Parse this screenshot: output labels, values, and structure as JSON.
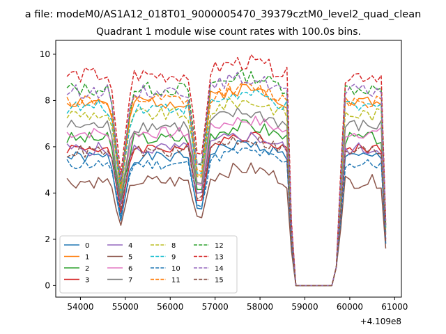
{
  "figure": {
    "suptitle": "a file: modeM0/AS1A12_018T01_9000005470_39379cztM0_level2_quad_clean",
    "title": "Quadrant 1 module wise count rates with 100.0s bins.",
    "offset_label": "+4.109e8"
  },
  "chart_data": {
    "type": "line",
    "title": "Quadrant 1 module wise count rates with 100.0s bins.",
    "xlabel": "",
    "ylabel": "",
    "x_offset": 410900000,
    "xlim": [
      53450,
      61150
    ],
    "ylim": [
      -0.5,
      10.6
    ],
    "xticks": [
      54000,
      55000,
      56000,
      57000,
      58000,
      59000,
      60000,
      61000
    ],
    "xtick_labels": [
      "54000",
      "55000",
      "56000",
      "57000",
      "58000",
      "59000",
      "60000",
      "61000"
    ],
    "yticks": [
      0,
      2,
      4,
      6,
      8,
      10
    ],
    "ytick_labels": [
      "0",
      "2",
      "4",
      "6",
      "8",
      "10"
    ],
    "grid": false,
    "legend_position": "lower-left",
    "bin_seconds": 100,
    "segments": [
      [
        53700,
        54800
      ],
      [
        54900,
        56600
      ],
      [
        56700,
        58600
      ],
      [
        59800,
        60800
      ]
    ],
    "series": [
      {
        "name": "0",
        "color": "#1f77b4",
        "dash": "solid",
        "base": 5.55,
        "amp": 0.25,
        "seed": 1,
        "dip": 2.8,
        "gap_start": 1.9,
        "gap_end": 1.8
      },
      {
        "name": "1",
        "color": "#ff7f0e",
        "dash": "solid",
        "base": 7.95,
        "amp": 0.3,
        "seed": 2,
        "dip": 4.0,
        "gap_start": 2.2,
        "gap_end": 2.5
      },
      {
        "name": "2",
        "color": "#2ca02c",
        "dash": "solid",
        "base": 6.35,
        "amp": 0.3,
        "seed": 3,
        "dip": 3.6,
        "gap_start": 2.2,
        "gap_end": 2.2
      },
      {
        "name": "3",
        "color": "#d62728",
        "dash": "solid",
        "base": 5.95,
        "amp": 0.25,
        "seed": 4,
        "dip": 3.1,
        "gap_start": 2.0,
        "gap_end": 2.0
      },
      {
        "name": "4",
        "color": "#9467bd",
        "dash": "solid",
        "base": 5.9,
        "amp": 0.3,
        "seed": 5,
        "dip": 3.5,
        "gap_start": 2.1,
        "gap_end": 2.0
      },
      {
        "name": "5",
        "color": "#8c564b",
        "dash": "solid",
        "base": 4.5,
        "amp": 0.3,
        "seed": 6,
        "dip": 2.6,
        "gap_start": 1.5,
        "gap_end": 1.6
      },
      {
        "name": "6",
        "color": "#e377c2",
        "dash": "solid",
        "base": 6.6,
        "amp": 0.25,
        "seed": 7,
        "dip": 3.8,
        "gap_start": 2.2,
        "gap_end": 2.2
      },
      {
        "name": "7",
        "color": "#7f7f7f",
        "dash": "solid",
        "base": 6.9,
        "amp": 0.3,
        "seed": 8,
        "dip": 3.8,
        "gap_start": 2.3,
        "gap_end": 2.3
      },
      {
        "name": "8",
        "color": "#bcbd22",
        "dash": "dashed",
        "base": 7.4,
        "amp": 0.3,
        "seed": 9,
        "dip": 4.0,
        "gap_start": 2.4,
        "gap_end": 2.4
      },
      {
        "name": "9",
        "color": "#17becf",
        "dash": "dashed",
        "base": 7.7,
        "amp": 0.3,
        "seed": 10,
        "dip": 4.1,
        "gap_start": 2.5,
        "gap_end": 2.5
      },
      {
        "name": "10",
        "color": "#1f77b4",
        "dash": "dashed",
        "base": 5.25,
        "amp": 0.25,
        "seed": 11,
        "dip": 3.0,
        "gap_start": 1.8,
        "gap_end": 1.8
      },
      {
        "name": "11",
        "color": "#ff7f0e",
        "dash": "dashed",
        "base": 8.0,
        "amp": 0.3,
        "seed": 12,
        "dip": 4.2,
        "gap_start": 2.6,
        "gap_end": 2.6
      },
      {
        "name": "12",
        "color": "#2ca02c",
        "dash": "dashed",
        "base": 8.5,
        "amp": 0.3,
        "seed": 13,
        "dip": 4.4,
        "gap_start": 2.6,
        "gap_end": 2.6
      },
      {
        "name": "13",
        "color": "#d62728",
        "dash": "dashed",
        "base": 9.1,
        "amp": 0.35,
        "seed": 14,
        "dip": 4.8,
        "gap_start": 2.8,
        "gap_end": 2.8
      },
      {
        "name": "14",
        "color": "#9467bd",
        "dash": "dashed",
        "base": 8.4,
        "amp": 0.3,
        "seed": 15,
        "dip": 4.5,
        "gap_start": 2.6,
        "gap_end": 2.6
      },
      {
        "name": "15",
        "color": "#8c564b",
        "dash": "dashed",
        "base": 5.8,
        "amp": 0.3,
        "seed": 16,
        "dip": 3.3,
        "gap_start": 1.9,
        "gap_end": 1.9
      }
    ]
  }
}
